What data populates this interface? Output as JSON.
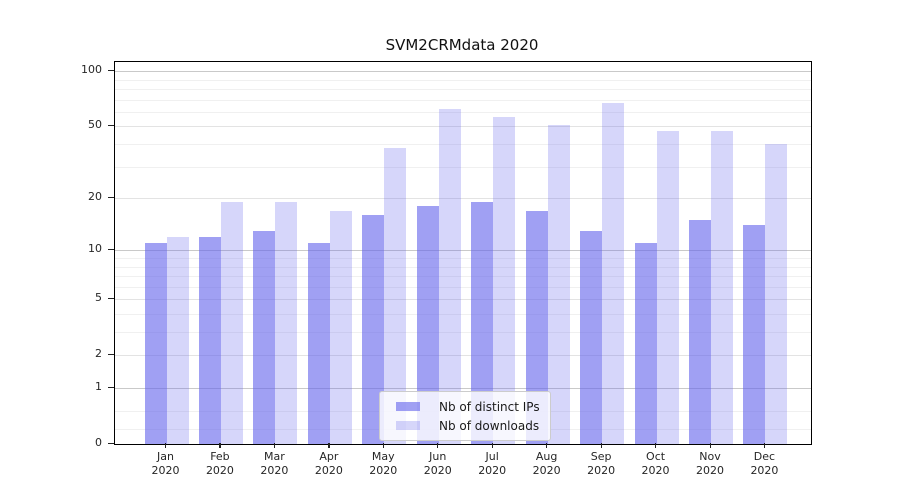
{
  "window": {
    "background": "#ffffff"
  },
  "chart_data": {
    "type": "bar",
    "title": "SVM2CRMdata 2020",
    "categories": [
      "Jan 2020",
      "Feb 2020",
      "Mar 2020",
      "Apr 2020",
      "May 2020",
      "Jun 2020",
      "Jul 2020",
      "Aug 2020",
      "Sep 2020",
      "Oct 2020",
      "Nov 2020",
      "Dec 2020"
    ],
    "series": [
      {
        "name": "Nb of distinct IPs",
        "values": [
          11,
          12,
          13,
          11,
          16,
          18,
          19,
          17,
          13,
          11,
          15,
          14
        ],
        "color": "rgba(102,102,235,0.62)"
      },
      {
        "name": "Nb of downloads",
        "values": [
          12,
          19,
          19,
          17,
          38,
          62,
          56,
          51,
          67,
          47,
          47,
          40
        ],
        "color": "rgba(102,102,235,0.27)"
      }
    ],
    "xlabel": "",
    "ylabel": "",
    "yscale": "symlog",
    "yticks": [
      100,
      50,
      20,
      10,
      5,
      2,
      1,
      0
    ],
    "ylim": [
      0,
      110
    ],
    "grid": true,
    "legend_position": "lower center",
    "colors": {
      "bar_base": "#6666eb",
      "grid_major": "#c9c9c9",
      "grid_medium": "#e3e3e3",
      "grid_minor": "#f0f0f0",
      "spine": "#000000"
    }
  }
}
